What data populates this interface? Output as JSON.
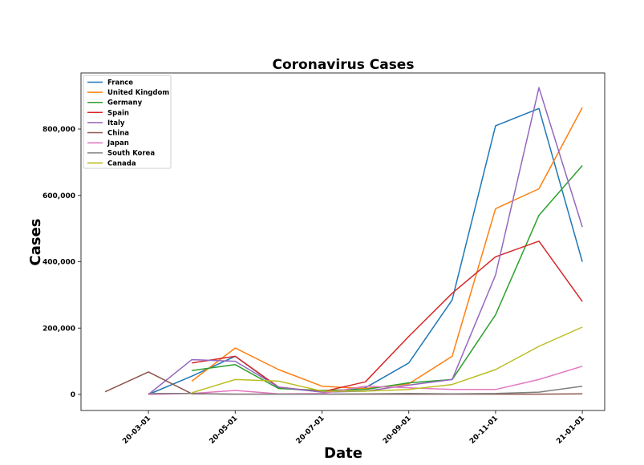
{
  "chart_data": {
    "type": "line",
    "title": "Coronavirus Cases",
    "xlabel": "Date",
    "ylabel": "Cases",
    "ylim": [
      -50000,
      960000
    ],
    "grid": false,
    "legend_position": "top-left",
    "x": [
      "20-02-01",
      "20-03-01",
      "20-04-01",
      "20-05-01",
      "20-06-01",
      "20-07-01",
      "20-08-01",
      "20-09-01",
      "20-10-01",
      "20-11-01",
      "20-12-01",
      "21-01-01"
    ],
    "x_ticks": [
      "20-03-01",
      "20-05-01",
      "20-07-01",
      "20-09-01",
      "20-11-01",
      "21-01-01"
    ],
    "y_ticks": [
      0,
      200000,
      400000,
      600000,
      800000
    ],
    "y_tick_labels": [
      "0",
      "200,000",
      "400,000",
      "600,000",
      "800,000"
    ],
    "series": [
      {
        "name": "France",
        "color": "#1f77b4",
        "values": [
          null,
          0,
          55000,
          115000,
          20000,
          8000,
          20000,
          95000,
          285000,
          810000,
          862000,
          400000
        ]
      },
      {
        "name": "United Kingdom",
        "color": "#ff7f0e",
        "values": [
          null,
          null,
          40000,
          140000,
          75000,
          25000,
          18000,
          32000,
          115000,
          560000,
          620000,
          865000
        ]
      },
      {
        "name": "Germany",
        "color": "#2ca02c",
        "values": [
          null,
          null,
          72000,
          90000,
          18000,
          12000,
          15000,
          35000,
          45000,
          240000,
          540000,
          690000
        ]
      },
      {
        "name": "Spain",
        "color": "#d62728",
        "values": [
          null,
          null,
          95000,
          115000,
          22000,
          8000,
          38000,
          175000,
          305000,
          415000,
          462000,
          280000
        ]
      },
      {
        "name": "Italy",
        "color": "#9467bd",
        "values": [
          null,
          0,
          105000,
          100000,
          22000,
          7000,
          10000,
          28000,
          45000,
          360000,
          925000,
          505000
        ]
      },
      {
        "name": "China",
        "color": "#8c564b",
        "values": [
          8000,
          68000,
          2000,
          1000,
          1000,
          1000,
          1000,
          1000,
          1000,
          1000,
          1000,
          2000
        ]
      },
      {
        "name": "Japan",
        "color": "#e377c2",
        "values": [
          null,
          0,
          3000,
          12000,
          2000,
          3000,
          25000,
          20000,
          15000,
          15000,
          45000,
          85000
        ]
      },
      {
        "name": "South Korea",
        "color": "#7f7f7f",
        "values": [
          null,
          3000,
          3000,
          1000,
          1000,
          1000,
          2000,
          3000,
          2000,
          3000,
          7000,
          25000
        ]
      },
      {
        "name": "Canada",
        "color": "#bcbd22",
        "values": [
          null,
          null,
          5000,
          45000,
          40000,
          10000,
          10000,
          15000,
          30000,
          75000,
          145000,
          203000
        ]
      }
    ]
  }
}
